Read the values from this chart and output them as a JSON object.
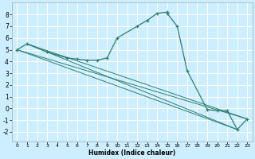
{
  "title": "",
  "xlabel": "Humidex (Indice chaleur)",
  "background_color": "#cceeff",
  "grid_color": "#ffffff",
  "line_color": "#2e7d6e",
  "xlim": [
    -0.5,
    23.5
  ],
  "ylim": [
    -2.8,
    9.0
  ],
  "yticks": [
    -2,
    -1,
    0,
    1,
    2,
    3,
    4,
    5,
    6,
    7,
    8
  ],
  "xticks": [
    0,
    1,
    2,
    3,
    4,
    5,
    6,
    7,
    8,
    9,
    10,
    11,
    12,
    13,
    14,
    15,
    16,
    17,
    18,
    19,
    20,
    21,
    22,
    23
  ],
  "main_x": [
    0,
    1,
    3,
    5,
    6,
    7,
    8,
    9,
    10,
    12,
    13,
    14,
    15,
    15,
    16,
    17,
    19,
    20,
    21,
    22,
    23
  ],
  "main_y": [
    5.0,
    5.5,
    4.8,
    4.3,
    4.2,
    4.1,
    4.1,
    4.3,
    6.0,
    7.0,
    7.5,
    8.1,
    8.2,
    8.1,
    7.0,
    3.2,
    -0.1,
    -0.2,
    -0.2,
    -1.8,
    -0.9
  ],
  "linear_lines": [
    {
      "x": [
        0,
        23
      ],
      "y": [
        5.0,
        -0.9
      ]
    },
    {
      "x": [
        0,
        22
      ],
      "y": [
        5.0,
        -1.8
      ]
    },
    {
      "x": [
        1,
        23
      ],
      "y": [
        5.5,
        -0.9
      ]
    },
    {
      "x": [
        1,
        22
      ],
      "y": [
        5.5,
        -1.8
      ]
    }
  ]
}
